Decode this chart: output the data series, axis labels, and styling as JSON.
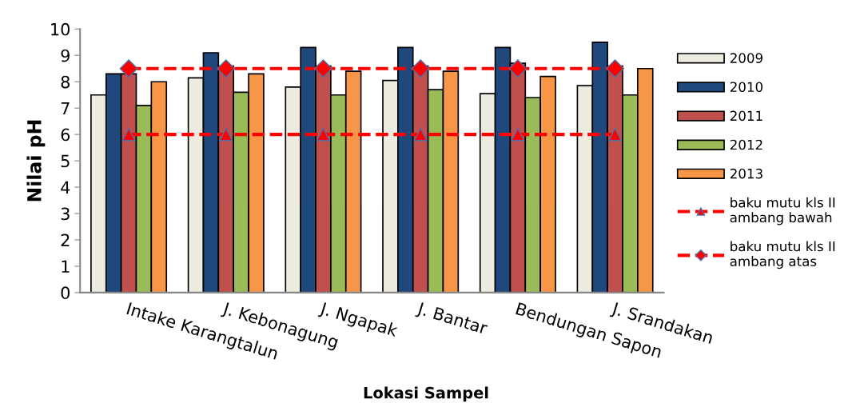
{
  "chart_data": {
    "type": "bar",
    "xlabel": "Lokasi Sampel",
    "ylabel": "Nilai pH",
    "categories": [
      "Intake Karangtalun",
      "J. Kebonagung",
      "J. Ngapak",
      "J. Bantar",
      "Bendungan Sapon",
      "J. Srandakan"
    ],
    "series": [
      {
        "name": "2009",
        "color": "#eeece1",
        "values": [
          7.5,
          8.15,
          7.8,
          8.05,
          7.55,
          7.85
        ]
      },
      {
        "name": "2010",
        "color": "#1f497d",
        "values": [
          8.3,
          9.1,
          9.3,
          9.3,
          9.3,
          9.5
        ]
      },
      {
        "name": "2011",
        "color": "#c0504d",
        "values": [
          8.3,
          8.6,
          8.6,
          8.6,
          8.7,
          8.6
        ]
      },
      {
        "name": "2012",
        "color": "#9bbb59",
        "values": [
          7.1,
          7.6,
          7.5,
          7.7,
          7.4,
          7.5
        ]
      },
      {
        "name": "2013",
        "color": "#f79646",
        "values": [
          8.0,
          8.3,
          8.4,
          8.4,
          8.2,
          8.5
        ]
      },
      {
        "name": "baku mutu kls II\nambang bawah",
        "type": "line",
        "color": "#ff0000",
        "marker": "triangle",
        "line_style": "dashed",
        "values": [
          6,
          6,
          6,
          6,
          6,
          6
        ]
      },
      {
        "name": "baku mutu kls II\nambang atas",
        "type": "line",
        "color": "#ff0000",
        "marker": "diamond",
        "line_style": "dashed",
        "values": [
          8.5,
          8.5,
          8.5,
          8.5,
          8.5,
          8.5
        ]
      }
    ],
    "ylim": [
      0,
      10
    ],
    "yticks": [
      0,
      1,
      2,
      3,
      4,
      5,
      6,
      7,
      8,
      9,
      10
    ],
    "grid": false,
    "legend": "right"
  }
}
